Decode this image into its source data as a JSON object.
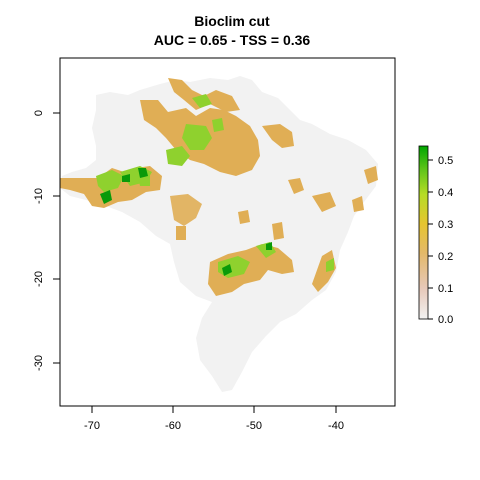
{
  "title_line1": "Bioclim cut",
  "title_line2": "AUC = 0.65 - TSS = 0.36",
  "map": {
    "x_ticks": [
      "-70",
      "-60",
      "-50",
      "-40"
    ],
    "y_ticks": [
      "0",
      "-10",
      "-20",
      "-30"
    ],
    "x_tick_values": [
      -70,
      -60,
      -50,
      -40
    ],
    "y_tick_values": [
      0,
      -10,
      -20,
      -30
    ],
    "xlim": [
      -74,
      -33
    ],
    "ylim": [
      -35,
      6.5
    ],
    "background_color": "#f2f2f2",
    "suitable_colors": {
      "low": "#e0ae55",
      "mid": "#8fd12e",
      "high": "#0a9a0a"
    }
  },
  "legend": {
    "labels": [
      "0.5",
      "0.4",
      "0.3",
      "0.2",
      "0.1",
      "0.0"
    ],
    "values": [
      0.5,
      0.4,
      0.3,
      0.2,
      0.1,
      0.0
    ],
    "range": [
      0,
      0.55
    ],
    "colors": [
      "#f2f2f2",
      "#e7c8b8",
      "#e3b96a",
      "#e6c530",
      "#b6dc25",
      "#62c51a",
      "#00a600"
    ]
  }
}
